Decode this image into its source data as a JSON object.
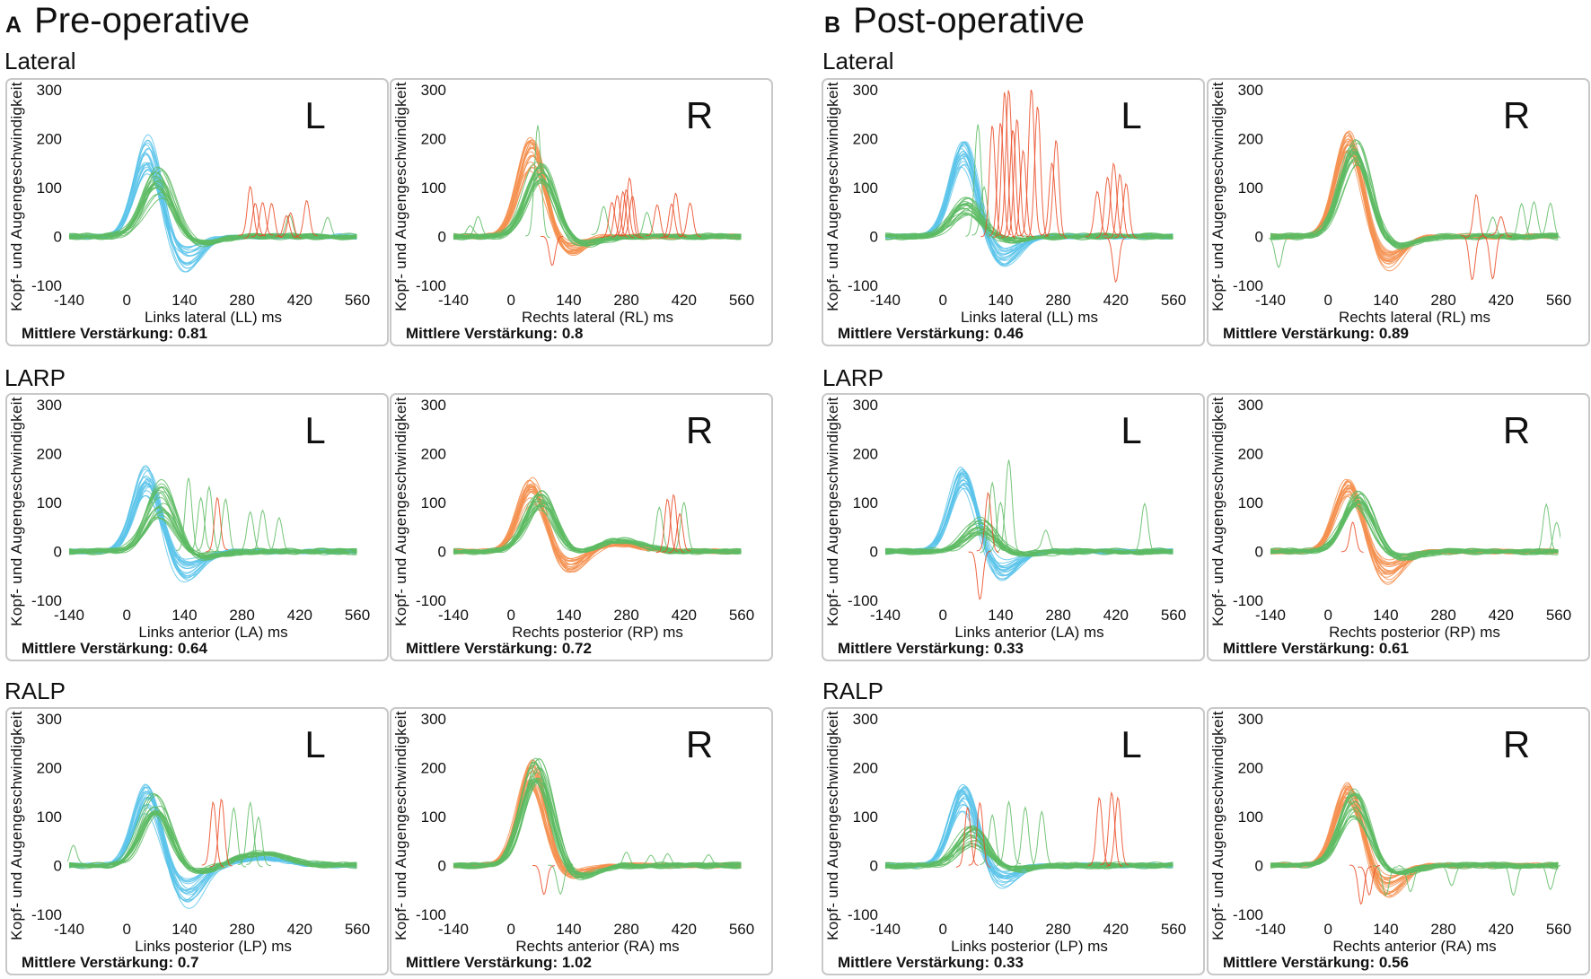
{
  "sections": {
    "pre": {
      "letter": "A",
      "title": "Pre-operative"
    },
    "post": {
      "letter": "B",
      "title": "Post-operative"
    }
  },
  "rows": {
    "lateral": "Lateral",
    "larp": "LARP",
    "ralp": "RALP"
  },
  "axes": {
    "ylabel": "Kopf- und Augengeschwindigkeit",
    "xticks": [
      "-140",
      "0",
      "140",
      "280",
      "420",
      "560"
    ],
    "yticks": [
      "300",
      "200",
      "100",
      "0",
      "-100"
    ],
    "xlim": [
      -140,
      560
    ],
    "ylim": [
      -100,
      300
    ]
  },
  "colors": {
    "head_left": "#5cc4ea",
    "head_right": "#f59050",
    "eye": "#5dbb63",
    "saccade": "#ea4a24",
    "frame": "#c8c8c8"
  },
  "chart_data": [
    {
      "type": "line",
      "section": "pre",
      "row": "lateral",
      "side": "L",
      "xlabel": "Links lateral (LL) ms",
      "gain_label": "Mittlere Verstärkung: 0.81",
      "gain": 0.81,
      "head_color": "head_left",
      "trials": 20,
      "head_peak": [
        120,
        210
      ],
      "eye_peak": [
        80,
        145
      ],
      "eye_delay": 25,
      "head_undershoot": 0.3,
      "rebound": [
        0,
        0
      ],
      "saccades_red": [
        [
          300,
          100
        ],
        [
          312,
          70
        ],
        [
          330,
          70
        ],
        [
          352,
          70
        ],
        [
          388,
          45
        ],
        [
          398,
          50
        ],
        [
          437,
          75
        ]
      ],
      "saccades_green": [
        [
          488,
          40
        ],
        [
          395,
          45
        ]
      ]
    },
    {
      "type": "line",
      "section": "pre",
      "row": "lateral",
      "side": "R",
      "xlabel": "Rechts lateral (RL) ms",
      "gain_label": "Mittlere Verstärkung: 0.8",
      "gain": 0.8,
      "head_color": "head_right",
      "trials": 20,
      "head_peak": [
        130,
        205
      ],
      "eye_peak": [
        110,
        150
      ],
      "eye_delay": 18,
      "head_undershoot": 0.15,
      "rebound": [
        0,
        0
      ],
      "saccades_red": [
        [
          245,
          70
        ],
        [
          258,
          85
        ],
        [
          272,
          95
        ],
        [
          280,
          95
        ],
        [
          288,
          120
        ],
        [
          295,
          85
        ],
        [
          355,
          65
        ],
        [
          390,
          70
        ],
        [
          400,
          90
        ],
        [
          435,
          70
        ],
        [
          100,
          -60
        ]
      ],
      "saccades_green": [
        [
          -80,
          40
        ],
        [
          -100,
          20
        ],
        [
          225,
          60
        ],
        [
          330,
          50
        ],
        [
          65,
          230
        ]
      ]
    },
    {
      "type": "line",
      "section": "pre",
      "row": "larp",
      "side": "L",
      "xlabel": "Links anterior (LA) ms",
      "gain_label": "Mittlere Verstärkung: 0.64",
      "gain": 0.64,
      "head_color": "head_left",
      "trials": 20,
      "head_peak": [
        110,
        180
      ],
      "eye_peak": [
        60,
        150
      ],
      "eye_delay": 30,
      "head_undershoot": 0.3,
      "rebound": [
        0,
        0
      ],
      "saccades_red": [
        [
          220,
          110
        ]
      ],
      "saccades_green": [
        [
          150,
          150
        ],
        [
          180,
          110
        ],
        [
          200,
          130
        ],
        [
          240,
          110
        ],
        [
          300,
          80
        ],
        [
          330,
          85
        ],
        [
          370,
          70
        ]
      ]
    },
    {
      "type": "line",
      "section": "pre",
      "row": "larp",
      "side": "R",
      "xlabel": "Rechts posterior (RP) ms",
      "gain_label": "Mittlere Verstärkung: 0.72",
      "gain": 0.72,
      "head_color": "head_right",
      "trials": 20,
      "head_peak": [
        100,
        155
      ],
      "eye_peak": [
        90,
        125
      ],
      "eye_delay": 20,
      "head_undershoot": 0.25,
      "rebound": [
        250,
        25
      ],
      "saccades_red": [
        [
          380,
          110
        ],
        [
          395,
          120
        ],
        [
          410,
          80
        ]
      ],
      "saccades_green": [
        [
          360,
          90
        ],
        [
          420,
          100
        ]
      ]
    },
    {
      "type": "line",
      "section": "pre",
      "row": "ralp",
      "side": "L",
      "xlabel": "Links posterior (LP) ms",
      "gain_label": "Mittlere Verstärkung: 0.7",
      "gain": 0.7,
      "head_color": "head_left",
      "trials": 20,
      "head_peak": [
        110,
        170
      ],
      "eye_peak": [
        100,
        155
      ],
      "eye_delay": 20,
      "head_undershoot": 0.4,
      "rebound": [
        330,
        25
      ],
      "saccades_red": [
        [
          210,
          130
        ],
        [
          230,
          140
        ]
      ],
      "saccades_green": [
        [
          260,
          120
        ],
        [
          300,
          130
        ],
        [
          320,
          100
        ],
        [
          -130,
          40
        ]
      ]
    },
    {
      "type": "line",
      "section": "pre",
      "row": "ralp",
      "side": "R",
      "xlabel": "Rechts anterior (RA) ms",
      "gain_label": "Mittlere Verstärkung: 1.02",
      "gain": 1.02,
      "head_color": "head_right",
      "trials": 20,
      "head_peak": [
        150,
        220
      ],
      "eye_peak": [
        170,
        235
      ],
      "eye_delay": 10,
      "head_undershoot": 0.1,
      "rebound": [
        0,
        0
      ],
      "saccades_red": [
        [
          80,
          -60
        ]
      ],
      "saccades_green": [
        [
          280,
          30
        ],
        [
          340,
          20
        ],
        [
          380,
          25
        ],
        [
          480,
          20
        ],
        [
          120,
          -60
        ]
      ]
    },
    {
      "type": "line",
      "section": "post",
      "row": "lateral",
      "side": "L",
      "xlabel": "Links lateral (LL) ms",
      "gain_label": "Mittlere Verstärkung: 0.46",
      "gain": 0.46,
      "head_color": "head_left",
      "trials": 20,
      "head_peak": [
        140,
        200
      ],
      "eye_peak": [
        40,
        80
      ],
      "eye_delay": 5,
      "head_undershoot": 0.25,
      "rebound": [
        0,
        0
      ],
      "saccades_red": [
        [
          120,
          230
        ],
        [
          140,
          230
        ],
        [
          150,
          300
        ],
        [
          160,
          300
        ],
        [
          170,
          220
        ],
        [
          180,
          240
        ],
        [
          195,
          180
        ],
        [
          215,
          300
        ],
        [
          230,
          270
        ],
        [
          265,
          150
        ],
        [
          275,
          200
        ],
        [
          375,
          90
        ],
        [
          400,
          120
        ],
        [
          415,
          150
        ],
        [
          430,
          130
        ],
        [
          445,
          110
        ],
        [
          420,
          -90
        ]
      ],
      "saccades_green": [
        [
          85,
          230
        ],
        [
          100,
          100
        ]
      ]
    },
    {
      "type": "line",
      "section": "post",
      "row": "lateral",
      "side": "R",
      "xlabel": "Rechts lateral (RL) ms",
      "gain_label": "Mittlere Verstärkung: 0.89",
      "gain": 0.89,
      "head_color": "head_right",
      "trials": 20,
      "head_peak": [
        170,
        220
      ],
      "eye_peak": [
        150,
        200
      ],
      "eye_delay": 15,
      "head_undershoot": 0.25,
      "rebound": [
        0,
        0
      ],
      "saccades_red": [
        [
          360,
          90
        ],
        [
          420,
          40
        ],
        [
          350,
          -90
        ],
        [
          400,
          -90
        ]
      ],
      "saccades_green": [
        [
          470,
          70
        ],
        [
          500,
          70
        ],
        [
          540,
          70
        ],
        [
          400,
          40
        ],
        [
          -120,
          -60
        ]
      ]
    },
    {
      "type": "line",
      "section": "post",
      "row": "larp",
      "side": "L",
      "xlabel": "Links anterior (LA) ms",
      "gain_label": "Mittlere Verstärkung: 0.33",
      "gain": 0.33,
      "head_color": "head_left",
      "trials": 20,
      "head_peak": [
        130,
        175
      ],
      "eye_peak": [
        30,
        70
      ],
      "eye_delay": 40,
      "head_undershoot": 0.3,
      "rebound": [
        0,
        0
      ],
      "saccades_red": [
        [
          110,
          120
        ],
        [
          90,
          -100
        ]
      ],
      "saccades_green": [
        [
          120,
          140
        ],
        [
          140,
          100
        ],
        [
          160,
          190
        ],
        [
          250,
          40
        ],
        [
          490,
          100
        ]
      ]
    },
    {
      "type": "line",
      "section": "post",
      "row": "larp",
      "side": "R",
      "xlabel": "Rechts posterior (RP) ms",
      "gain_label": "Mittlere Verstärkung: 0.61",
      "gain": 0.61,
      "head_color": "head_right",
      "trials": 20,
      "head_peak": [
        110,
        150
      ],
      "eye_peak": [
        90,
        125
      ],
      "eye_delay": 20,
      "head_undershoot": 0.3,
      "rebound": [
        0,
        0
      ],
      "saccades_red": [
        [
          60,
          60
        ]
      ],
      "saccades_green": [
        [
          530,
          100
        ],
        [
          555,
          60
        ]
      ]
    },
    {
      "type": "line",
      "section": "post",
      "row": "ralp",
      "side": "L",
      "xlabel": "Links posterior (LP) ms",
      "gain_label": "Mittlere Verstärkung: 0.33",
      "gain": 0.33,
      "head_color": "head_left",
      "trials": 20,
      "head_peak": [
        110,
        170
      ],
      "eye_peak": [
        40,
        80
      ],
      "eye_delay": 20,
      "head_undershoot": 0.2,
      "rebound": [
        0,
        0
      ],
      "saccades_red": [
        [
          60,
          120
        ],
        [
          90,
          130
        ],
        [
          380,
          140
        ],
        [
          410,
          150
        ],
        [
          425,
          140
        ]
      ],
      "saccades_green": [
        [
          120,
          100
        ],
        [
          160,
          130
        ],
        [
          200,
          120
        ],
        [
          240,
          110
        ]
      ]
    },
    {
      "type": "line",
      "section": "post",
      "row": "ralp",
      "side": "R",
      "xlabel": "Rechts anterior (RA) ms",
      "gain_label": "Mittlere Verstärkung: 0.56",
      "gain": 0.56,
      "head_color": "head_right",
      "trials": 20,
      "head_peak": [
        130,
        175
      ],
      "eye_peak": [
        90,
        160
      ],
      "eye_delay": 15,
      "head_undershoot": 0.3,
      "rebound": [
        0,
        0
      ],
      "saccades_red": [
        [
          80,
          -80
        ],
        [
          100,
          -60
        ]
      ],
      "saccades_green": [
        [
          140,
          -60
        ],
        [
          200,
          -50
        ],
        [
          300,
          -40
        ],
        [
          450,
          -60
        ],
        [
          540,
          -50
        ]
      ]
    }
  ]
}
